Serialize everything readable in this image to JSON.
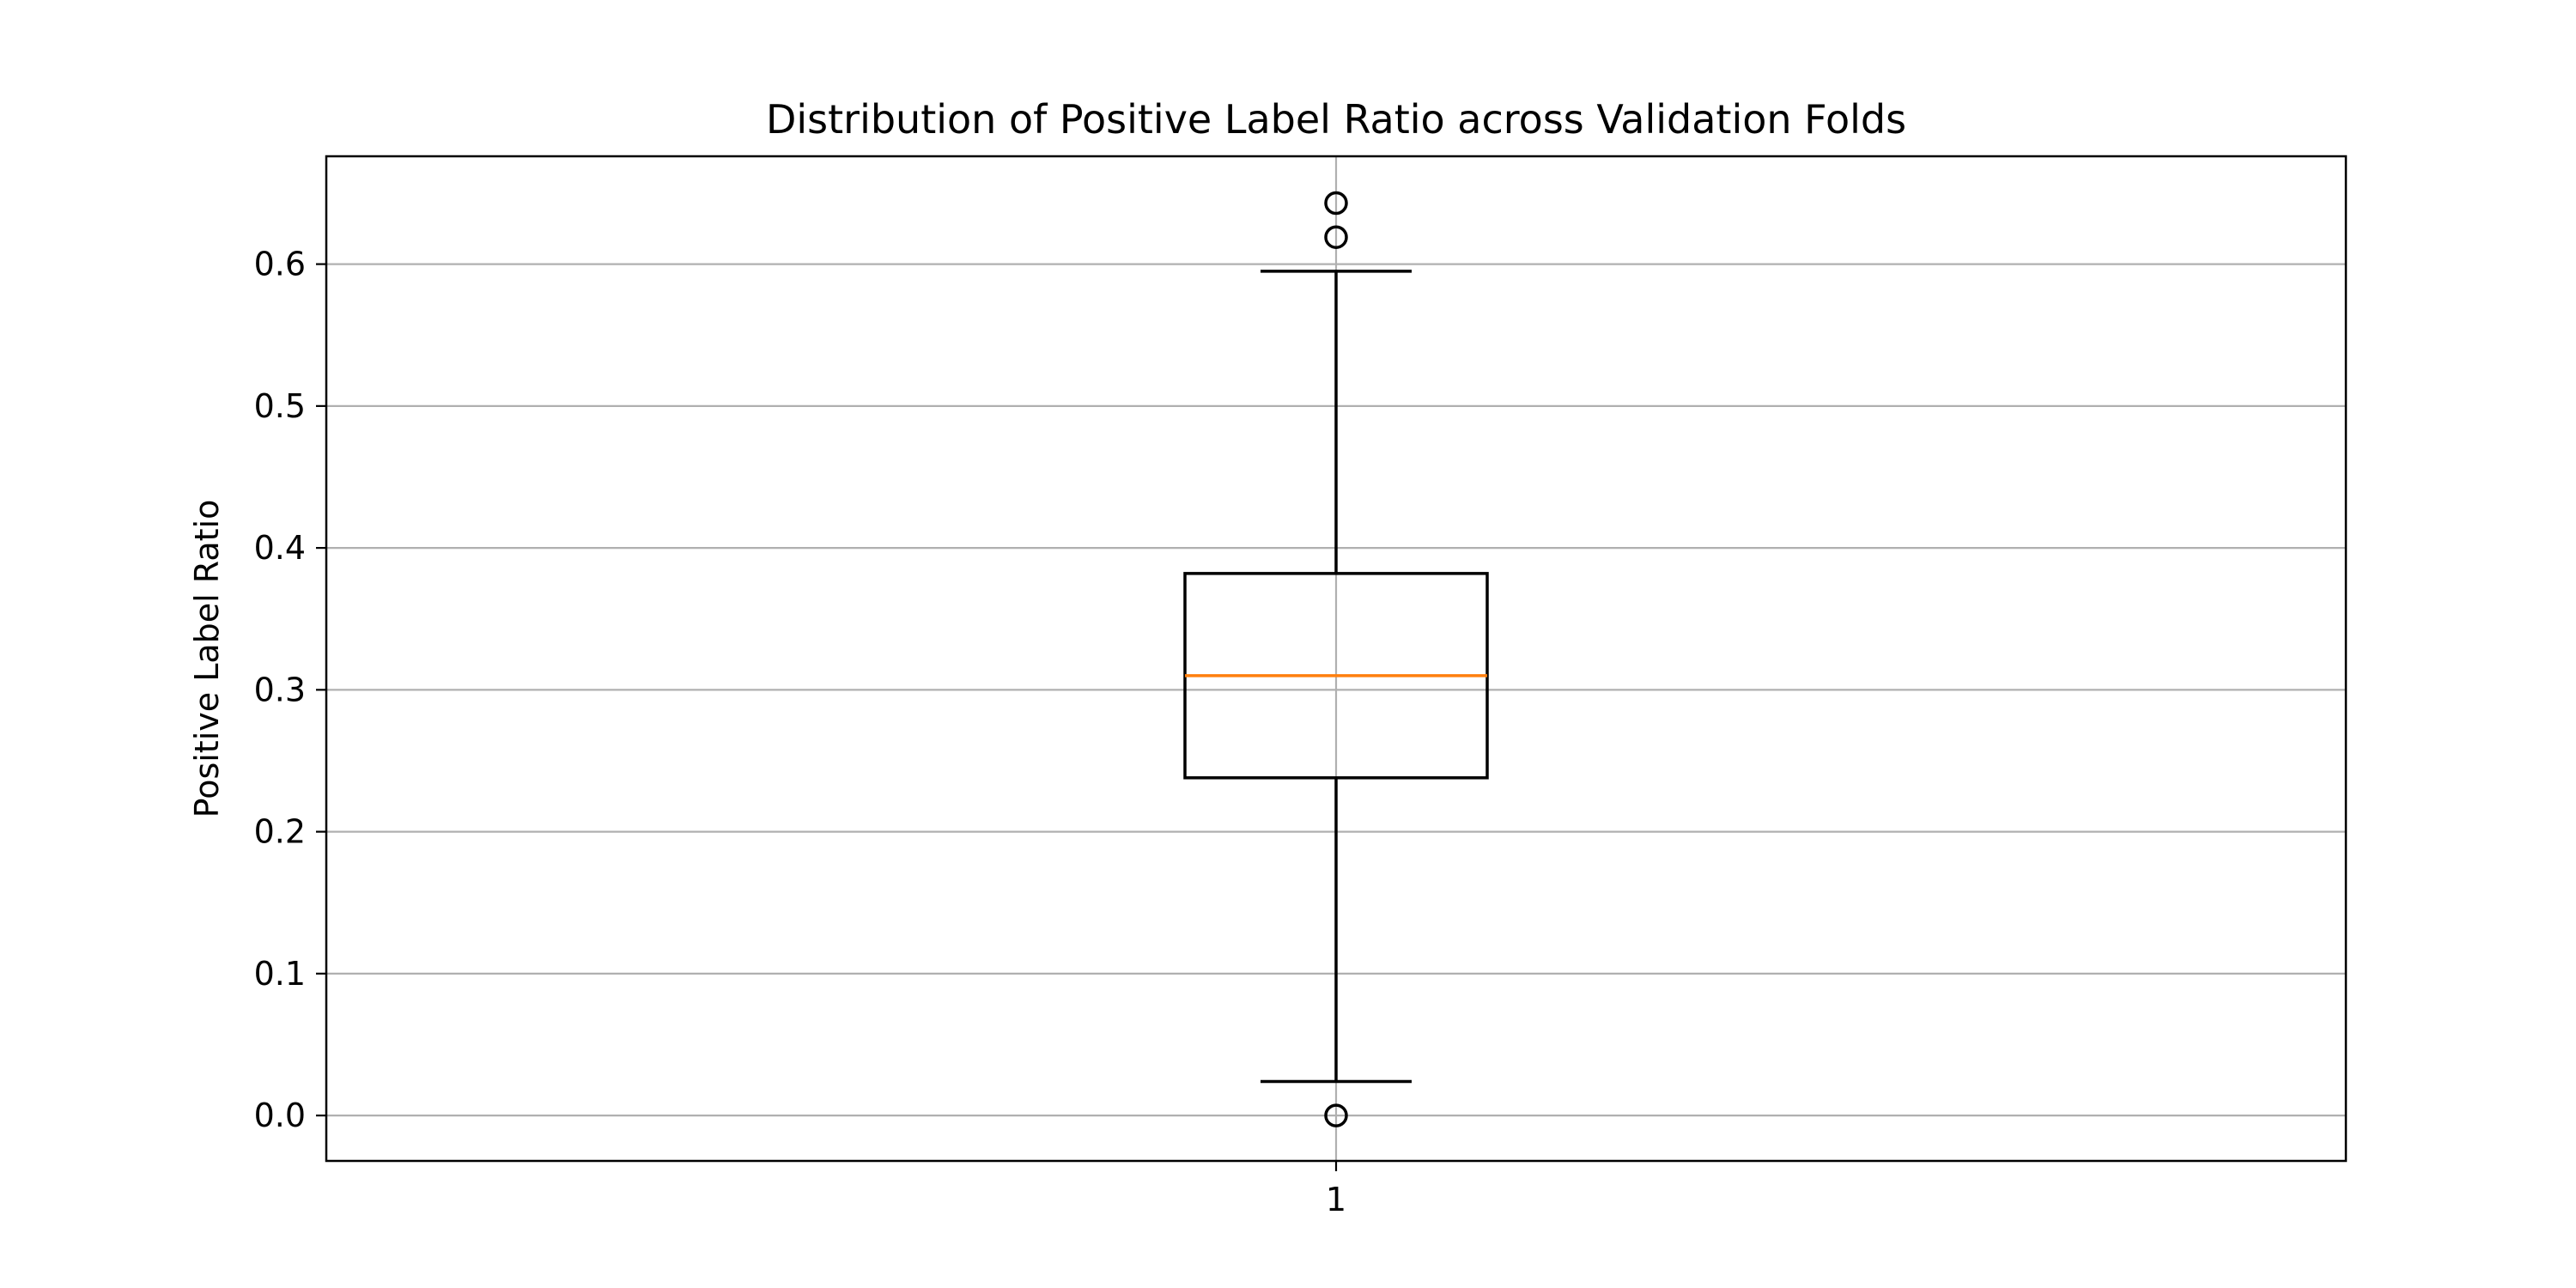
{
  "chart_data": {
    "type": "box",
    "title": "Distribution of Positive Label Ratio across Validation Folds",
    "xlabel": "",
    "ylabel": "Positive Label Ratio",
    "ylim": [
      -0.032,
      0.676
    ],
    "yticks": [
      "0.0",
      "0.1",
      "0.2",
      "0.3",
      "0.4",
      "0.5",
      "0.6"
    ],
    "xticks": [
      "1"
    ],
    "grid": true,
    "boxes": [
      {
        "position": 1,
        "whisker_low": 0.024,
        "q1": 0.238,
        "median": 0.31,
        "q3": 0.382,
        "whisker_high": 0.595,
        "outliers": [
          0.0,
          0.619,
          0.643
        ]
      }
    ]
  },
  "colors": {
    "box": "#000000",
    "median": "#ff7f0e",
    "grid": "#b0b0b0",
    "frame": "#000000",
    "background": "#ffffff"
  }
}
